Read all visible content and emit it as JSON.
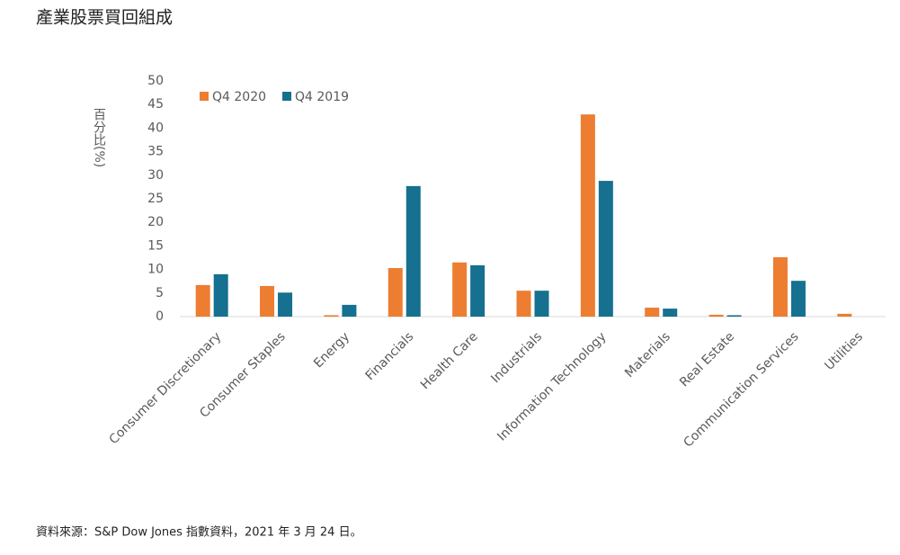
{
  "chart_data": {
    "type": "bar",
    "title": "產業股票買回組成",
    "y_label": "百分比(%)",
    "source": "資料來源：S&P Dow Jones 指數資料，2021 年 3 月 24 日。",
    "categories": [
      "Consumer Discretionary",
      "Consumer Staples",
      "Energy",
      "Financials",
      "Health Care",
      "Industrials",
      "Information Technology",
      "Materials",
      "Real Estate",
      "Communication Services",
      "Utilities"
    ],
    "series": [
      {
        "name": "Q4 2020",
        "color": "#ed7d31",
        "values": [
          6.7,
          6.5,
          0.3,
          10.3,
          11.5,
          5.5,
          42.9,
          1.9,
          0.4,
          12.6,
          0.6
        ]
      },
      {
        "name": "Q4 2019",
        "color": "#16708f",
        "values": [
          9.0,
          5.1,
          2.5,
          27.7,
          10.9,
          5.5,
          28.8,
          1.7,
          0.3,
          7.6,
          0
        ]
      }
    ],
    "ylim": [
      0,
      50
    ],
    "yticks": [
      0,
      5,
      10,
      15,
      20,
      25,
      30,
      35,
      40,
      45,
      50
    ],
    "grid": false,
    "legend": "top-left"
  }
}
